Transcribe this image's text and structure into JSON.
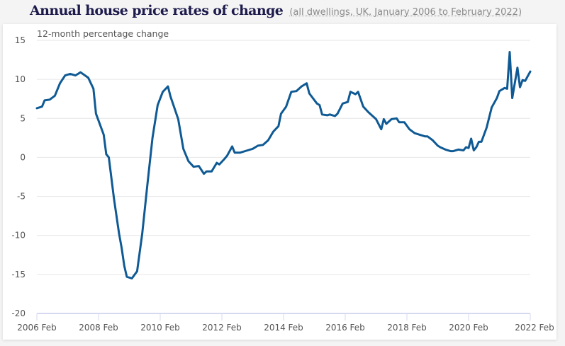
{
  "header": {
    "title": "Annual house price rates of change",
    "subtitle": "(all dwellings, UK, January 2006 to February 2022)"
  },
  "chart_data": {
    "type": "line",
    "ylabel": "12-month percentage change",
    "ylim": [
      -20,
      15
    ],
    "yticks": [
      15,
      10,
      5,
      0,
      -5,
      -10,
      -15,
      -20
    ],
    "xlim": [
      "2006-02",
      "2022-02"
    ],
    "xticks": [
      "2006 Feb",
      "2008 Feb",
      "2010 Feb",
      "2012 Feb",
      "2014 Feb",
      "2016 Feb",
      "2018 Feb",
      "2020 Feb",
      "2022 Feb"
    ],
    "grid": true,
    "line_color": "#0f5a94",
    "series": [
      {
        "x": [
          "2006-02",
          "2006-04",
          "2006-05",
          "2006-07",
          "2006-09",
          "2006-11",
          "2007-01",
          "2007-03",
          "2007-05",
          "2007-07",
          "2007-10",
          "2007-12",
          "2008-01",
          "2008-04",
          "2008-05",
          "2008-06",
          "2008-08",
          "2008-10",
          "2008-11",
          "2008-12",
          "2009-01",
          "2009-03",
          "2009-05",
          "2009-07",
          "2009-09",
          "2009-11",
          "2010-01",
          "2010-03",
          "2010-05",
          "2010-06",
          "2010-09",
          "2010-11",
          "2011-01",
          "2011-03",
          "2011-05",
          "2011-07",
          "2011-08",
          "2011-10",
          "2011-12",
          "2012-01",
          "2012-03",
          "2012-04",
          "2012-06",
          "2012-07",
          "2012-09",
          "2012-12",
          "2013-02",
          "2013-04",
          "2013-06",
          "2013-08",
          "2013-10",
          "2013-12",
          "2014-01",
          "2014-03",
          "2014-05",
          "2014-07",
          "2014-09",
          "2014-11",
          "2014-12",
          "2015-03",
          "2015-04",
          "2015-05",
          "2015-07",
          "2015-08",
          "2015-10",
          "2015-11",
          "2016-01",
          "2016-03",
          "2016-04",
          "2016-06",
          "2016-07",
          "2016-09",
          "2016-11",
          "2017-01",
          "2017-02",
          "2017-04",
          "2017-05",
          "2017-06",
          "2017-08",
          "2017-10",
          "2017-11",
          "2018-01",
          "2018-03",
          "2018-05",
          "2018-07",
          "2018-09",
          "2018-10",
          "2018-12",
          "2019-02",
          "2019-03",
          "2019-05",
          "2019-07",
          "2019-08",
          "2019-10",
          "2019-12",
          "2020-01",
          "2020-02",
          "2020-03",
          "2020-04",
          "2020-05",
          "2020-06",
          "2020-07",
          "2020-09",
          "2020-11",
          "2021-01",
          "2021-02",
          "2021-04",
          "2021-05",
          "2021-06",
          "2021-07",
          "2021-09",
          "2021-10",
          "2021-11",
          "2021-12",
          "2022-02"
        ],
        "y": [
          6.3,
          6.5,
          7.3,
          7.4,
          7.9,
          9.5,
          10.5,
          10.7,
          10.5,
          10.9,
          10.2,
          8.8,
          5.6,
          2.9,
          0.4,
          0,
          -5.3,
          -9.8,
          -11.6,
          -13.9,
          -15.3,
          -15.5,
          -14.6,
          -9.8,
          -3.5,
          2.5,
          6.7,
          8.4,
          9.1,
          7.8,
          4.9,
          1.1,
          -0.5,
          -1.2,
          -1.1,
          -2.1,
          -1.8,
          -1.8,
          -0.7,
          -0.9,
          -0.2,
          0.2,
          1.4,
          0.6,
          0.6,
          0.9,
          1.1,
          1.5,
          1.6,
          2.2,
          3.3,
          4.0,
          5.6,
          6.5,
          8.4,
          8.5,
          9.1,
          9.5,
          8.2,
          6.9,
          6.7,
          5.5,
          5.4,
          5.5,
          5.3,
          5.6,
          6.9,
          7.1,
          8.4,
          8.1,
          8.4,
          6.5,
          5.8,
          5.2,
          4.9,
          3.6,
          4.9,
          4.3,
          4.9,
          5.0,
          4.5,
          4.5,
          3.6,
          3.1,
          2.9,
          2.7,
          2.7,
          2.2,
          1.5,
          1.3,
          1.0,
          0.8,
          0.8,
          1.0,
          0.9,
          1.3,
          1.2,
          2.4,
          0.9,
          1.3,
          2.0,
          2.0,
          3.8,
          6.4,
          7.6,
          8.5,
          8.9,
          8.8,
          13.5,
          7.6,
          11.5,
          9.0,
          9.9,
          9.8,
          11.0
        ]
      }
    ]
  }
}
